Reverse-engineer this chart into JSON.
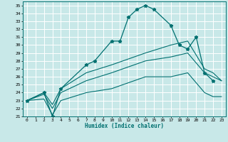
{
  "xlabel": "Humidex (Indice chaleur)",
  "bg_color": "#c8e8e8",
  "grid_color": "#ffffff",
  "line_color": "#007070",
  "xlim": [
    -0.5,
    23.5
  ],
  "ylim": [
    21,
    35.5
  ],
  "xticks": [
    0,
    1,
    2,
    3,
    4,
    5,
    6,
    7,
    8,
    9,
    10,
    11,
    12,
    13,
    14,
    15,
    16,
    17,
    18,
    19,
    20,
    21,
    22,
    23
  ],
  "yticks": [
    21,
    22,
    23,
    24,
    25,
    26,
    27,
    28,
    29,
    30,
    31,
    32,
    33,
    34,
    35
  ],
  "lines": [
    {
      "x": [
        0,
        2,
        3,
        4,
        7,
        8,
        10,
        11,
        12,
        13,
        14,
        15,
        17,
        18,
        19,
        20,
        21,
        22
      ],
      "y": [
        23,
        24,
        21,
        24.5,
        27.5,
        28,
        30.5,
        30.5,
        33.5,
        34.5,
        35,
        34.5,
        32.5,
        30,
        29.5,
        31,
        26.5,
        25.5
      ],
      "marker": "*",
      "ms": 3.5,
      "lw": 0.9
    },
    {
      "x": [
        0,
        2,
        3,
        4,
        7,
        10,
        14,
        17,
        19,
        21,
        22,
        23
      ],
      "y": [
        23,
        24,
        22.5,
        24.5,
        26.5,
        27.5,
        29,
        30,
        30.5,
        27,
        26.5,
        25.5
      ],
      "marker": null,
      "ms": 0,
      "lw": 0.8
    },
    {
      "x": [
        0,
        2,
        3,
        4,
        7,
        10,
        14,
        17,
        19,
        21,
        22,
        23
      ],
      "y": [
        23,
        23.8,
        22,
        24,
        25.5,
        26.5,
        28,
        28.5,
        29,
        26.5,
        26,
        25.5
      ],
      "marker": null,
      "ms": 0,
      "lw": 0.8
    },
    {
      "x": [
        0,
        2,
        3,
        4,
        7,
        10,
        14,
        17,
        19,
        21,
        22,
        23
      ],
      "y": [
        23,
        23.2,
        21.2,
        23,
        24,
        24.5,
        26,
        26,
        26.5,
        24,
        23.5,
        23.5
      ],
      "marker": null,
      "ms": 0,
      "lw": 0.8
    }
  ]
}
